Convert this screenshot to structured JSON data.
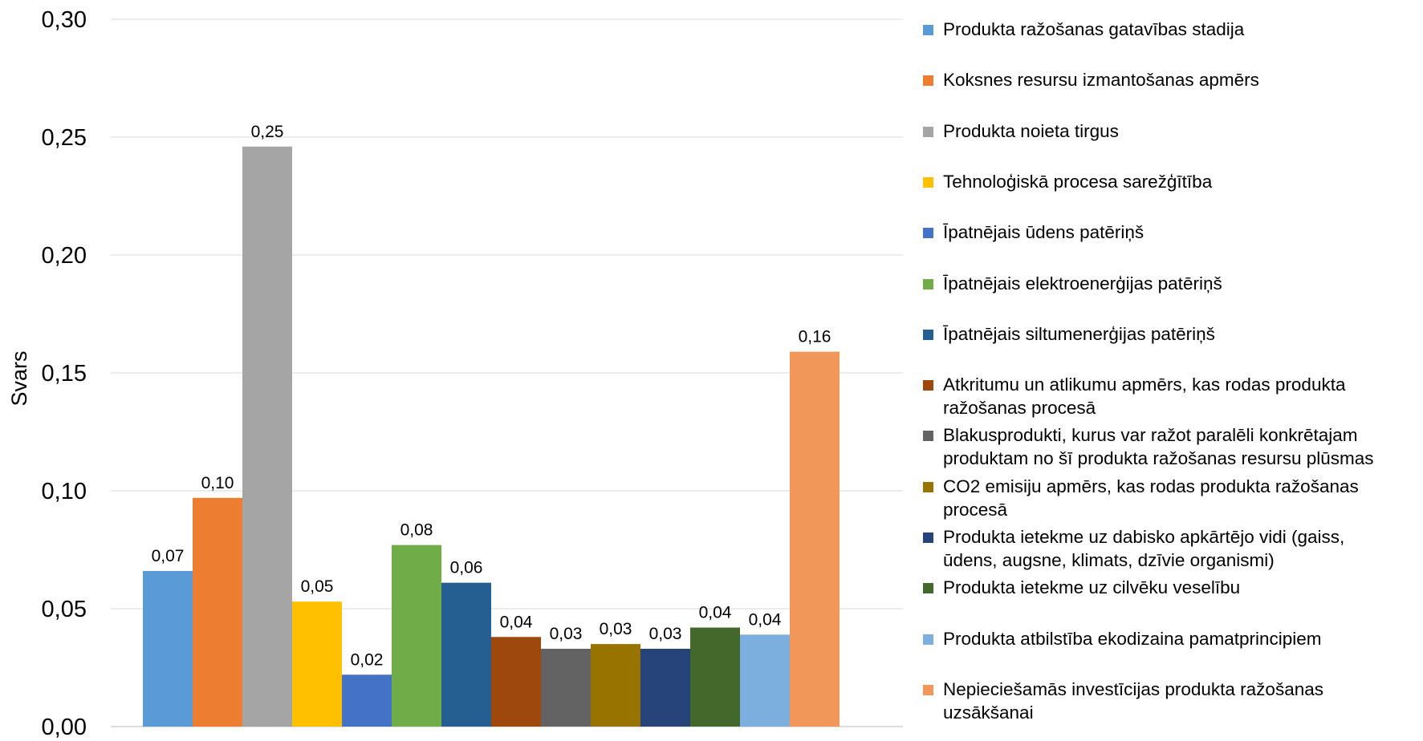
{
  "chart_data": {
    "type": "bar",
    "ylabel": "Svars",
    "ylim": [
      0,
      0.3
    ],
    "yticks": [
      "0,00",
      "0,05",
      "0,10",
      "0,15",
      "0,20",
      "0,25",
      "0,30"
    ],
    "grid": true,
    "legend_position": "right",
    "series": [
      {
        "name": "Produkta ražošanas gatavības stadija",
        "value": 0.066,
        "label": "0,07",
        "color": "#5B9BD5"
      },
      {
        "name": "Koksnes resursu izmantošanas apmērs",
        "value": 0.097,
        "label": "0,10",
        "color": "#ED7D31"
      },
      {
        "name": "Produkta noieta tirgus",
        "value": 0.246,
        "label": "0,25",
        "color": "#A5A5A5"
      },
      {
        "name": "Tehnoloģiskā procesa sarežģītība",
        "value": 0.053,
        "label": "0,05",
        "color": "#FFC000"
      },
      {
        "name": "Īpatnējais ūdens patēriņš",
        "value": 0.022,
        "label": "0,02",
        "color": "#4472C4"
      },
      {
        "name": "Īpatnējais elektroenerģijas patēriņš",
        "value": 0.077,
        "label": "0,08",
        "color": "#70AD47"
      },
      {
        "name": "Īpatnējais siltumenerģijas patēriņš",
        "value": 0.061,
        "label": "0,06",
        "color": "#255E91"
      },
      {
        "name": "Atkritumu un atlikumu apmērs, kas rodas produkta\nražošanas procesā",
        "value": 0.038,
        "label": "0,04",
        "color": "#9E480E"
      },
      {
        "name": "Blakusprodukti, kurus var ražot paralēli konkrētajam\nproduktam no šī produkta ražošanas resursu plūsmas",
        "value": 0.033,
        "label": "0,03",
        "color": "#636363"
      },
      {
        "name": "CO2 emisiju apmērs, kas rodas produkta ražošanas\nprocesā",
        "value": 0.035,
        "label": "0,03",
        "color": "#997300"
      },
      {
        "name": "Produkta ietekme uz dabisko apkārtējo vidi (gaiss,\nūdens, augsne, klimats, dzīvie organismi)",
        "value": 0.033,
        "label": "0,03",
        "color": "#264478"
      },
      {
        "name": "Produkta ietekme uz cilvēku veselību",
        "value": 0.042,
        "label": "0,04",
        "color": "#43682B"
      },
      {
        "name": "Produkta atbilstība ekodizaina pamatprincipiem",
        "value": 0.039,
        "label": "0,04",
        "color": "#7CAFDD"
      },
      {
        "name": "Nepieciešamās investīcijas produkta ražošanas\nuzsākšanai",
        "value": 0.159,
        "label": "0,16",
        "color": "#F1975A"
      }
    ]
  }
}
